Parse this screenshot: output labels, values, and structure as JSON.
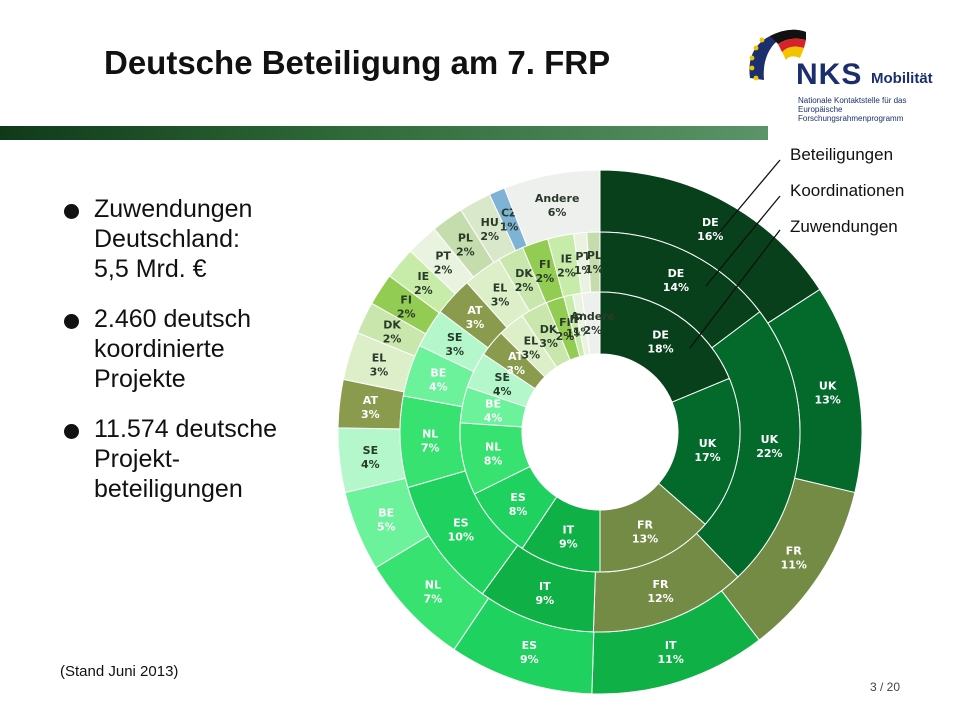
{
  "title": "Deutsche Beteiligung am 7. FRP",
  "logo": {
    "name": "NKS",
    "name_suffix": "Mobilität",
    "subtitle_lines": [
      "Nationale Kontaktstelle für das",
      "Europäische Forschungsrahmenprogramm"
    ]
  },
  "bullets": [
    {
      "lines": [
        "Zuwendungen",
        "Deutschland:",
        "5,5 Mrd. €"
      ]
    },
    {
      "lines": [
        "2.460 deutsch",
        "koordinierte",
        "Projekte"
      ]
    },
    {
      "lines": [
        "11.574 deutsche",
        "Projekt-",
        "beteiligungen"
      ]
    }
  ],
  "footnote": "(Stand Juni 2013)",
  "page_number": "3 / 20",
  "colors": {
    "DE": "#07401a",
    "UK": "#036a2c",
    "FR": "#748b45",
    "IT": "#0fb046",
    "ES": "#1fd25f",
    "NL": "#38e271",
    "BE": "#6cf29b",
    "SE": "#b3f7ca",
    "AT": "#8a9b4d",
    "EL": "#dcefc9",
    "DK": "#c9e6ad",
    "FI": "#93cc53",
    "IE": "#c7eba8",
    "PT": "#e9f3df",
    "PL": "#c5dcac",
    "HU": "#d9e8cb",
    "CZ": "#7fb3d5",
    "Andere": "#eef0ee"
  },
  "chart_data": {
    "type": "pie",
    "subtype": "multi-ring donut",
    "legend_placement": "top-right",
    "rings": [
      {
        "name": "Beteiligungen",
        "position": "outer",
        "slices": [
          {
            "label": "DE",
            "value": 16,
            "text": "16%"
          },
          {
            "label": "UK",
            "value": 13,
            "text": "13%"
          },
          {
            "label": "FR",
            "value": 11,
            "text": "11%"
          },
          {
            "label": "IT",
            "value": 11,
            "text": "11%"
          },
          {
            "label": "ES",
            "value": 9,
            "text": "9%"
          },
          {
            "label": "NL",
            "value": 7,
            "text": "7%"
          },
          {
            "label": "BE",
            "value": 5,
            "text": "5%"
          },
          {
            "label": "SE",
            "value": 4,
            "text": "4%"
          },
          {
            "label": "AT",
            "value": 3,
            "text": "3%"
          },
          {
            "label": "EL",
            "value": 3,
            "text": "3%"
          },
          {
            "label": "DK",
            "value": 2,
            "text": "2%"
          },
          {
            "label": "FI",
            "value": 2,
            "text": "2%"
          },
          {
            "label": "IE",
            "value": 2,
            "text": "2%"
          },
          {
            "label": "PT",
            "value": 2,
            "text": "2%"
          },
          {
            "label": "PL",
            "value": 2,
            "text": "2%"
          },
          {
            "label": "HU",
            "value": 2,
            "text": "2%"
          },
          {
            "label": "CZ",
            "value": 1,
            "text": "1%"
          },
          {
            "label": "Andere",
            "value": 6,
            "text": "6%"
          }
        ]
      },
      {
        "name": "Koordinationen",
        "position": "middle",
        "slices": [
          {
            "label": "DE",
            "value": 14,
            "text": "14%"
          },
          {
            "label": "UK",
            "value": 22,
            "text": "22%"
          },
          {
            "label": "FR",
            "value": 12,
            "text": "12%"
          },
          {
            "label": "IT",
            "value": 9,
            "text": "9%"
          },
          {
            "label": "ES",
            "value": 10,
            "text": "10%"
          },
          {
            "label": "NL",
            "value": 7,
            "text": "7%"
          },
          {
            "label": "BE",
            "value": 4,
            "text": "4%"
          },
          {
            "label": "SE",
            "value": 3,
            "text": "3%"
          },
          {
            "label": "AT",
            "value": 3,
            "text": "3%"
          },
          {
            "label": "EL",
            "value": 3,
            "text": "3%"
          },
          {
            "label": "DK",
            "value": 2,
            "text": "2%"
          },
          {
            "label": "FI",
            "value": 2,
            "text": "2%"
          },
          {
            "label": "IE",
            "value": 2,
            "text": "2%"
          },
          {
            "label": "PT",
            "value": 1,
            "text": "1%"
          },
          {
            "label": "PL",
            "value": 1,
            "text": "1%"
          }
        ]
      },
      {
        "name": "Zuwendungen",
        "position": "inner",
        "slices": [
          {
            "label": "DE",
            "value": 18,
            "text": "18%"
          },
          {
            "label": "UK",
            "value": 17,
            "text": "17%"
          },
          {
            "label": "FR",
            "value": 13,
            "text": "13%"
          },
          {
            "label": "IT",
            "value": 9,
            "text": "9%"
          },
          {
            "label": "ES",
            "value": 8,
            "text": "8%"
          },
          {
            "label": "NL",
            "value": 8,
            "text": "8%"
          },
          {
            "label": "BE",
            "value": 4,
            "text": "4%"
          },
          {
            "label": "SE",
            "value": 4,
            "text": "4%"
          },
          {
            "label": "AT",
            "value": 3,
            "text": "3%"
          },
          {
            "label": "EL",
            "value": 3,
            "text": "3%"
          },
          {
            "label": "DK",
            "value": 3,
            "text": "3%"
          },
          {
            "label": "FI",
            "value": 2,
            "text": "2%"
          },
          {
            "label": "IE",
            "value": 1,
            "text": "1%"
          },
          {
            "label": "PT",
            "value": 1,
            "text": "1%"
          },
          {
            "label": "Andere",
            "value": 2,
            "text": "2%"
          }
        ]
      }
    ],
    "legend": [
      "Beteiligungen",
      "Koordinationen",
      "Zuwendungen"
    ]
  }
}
